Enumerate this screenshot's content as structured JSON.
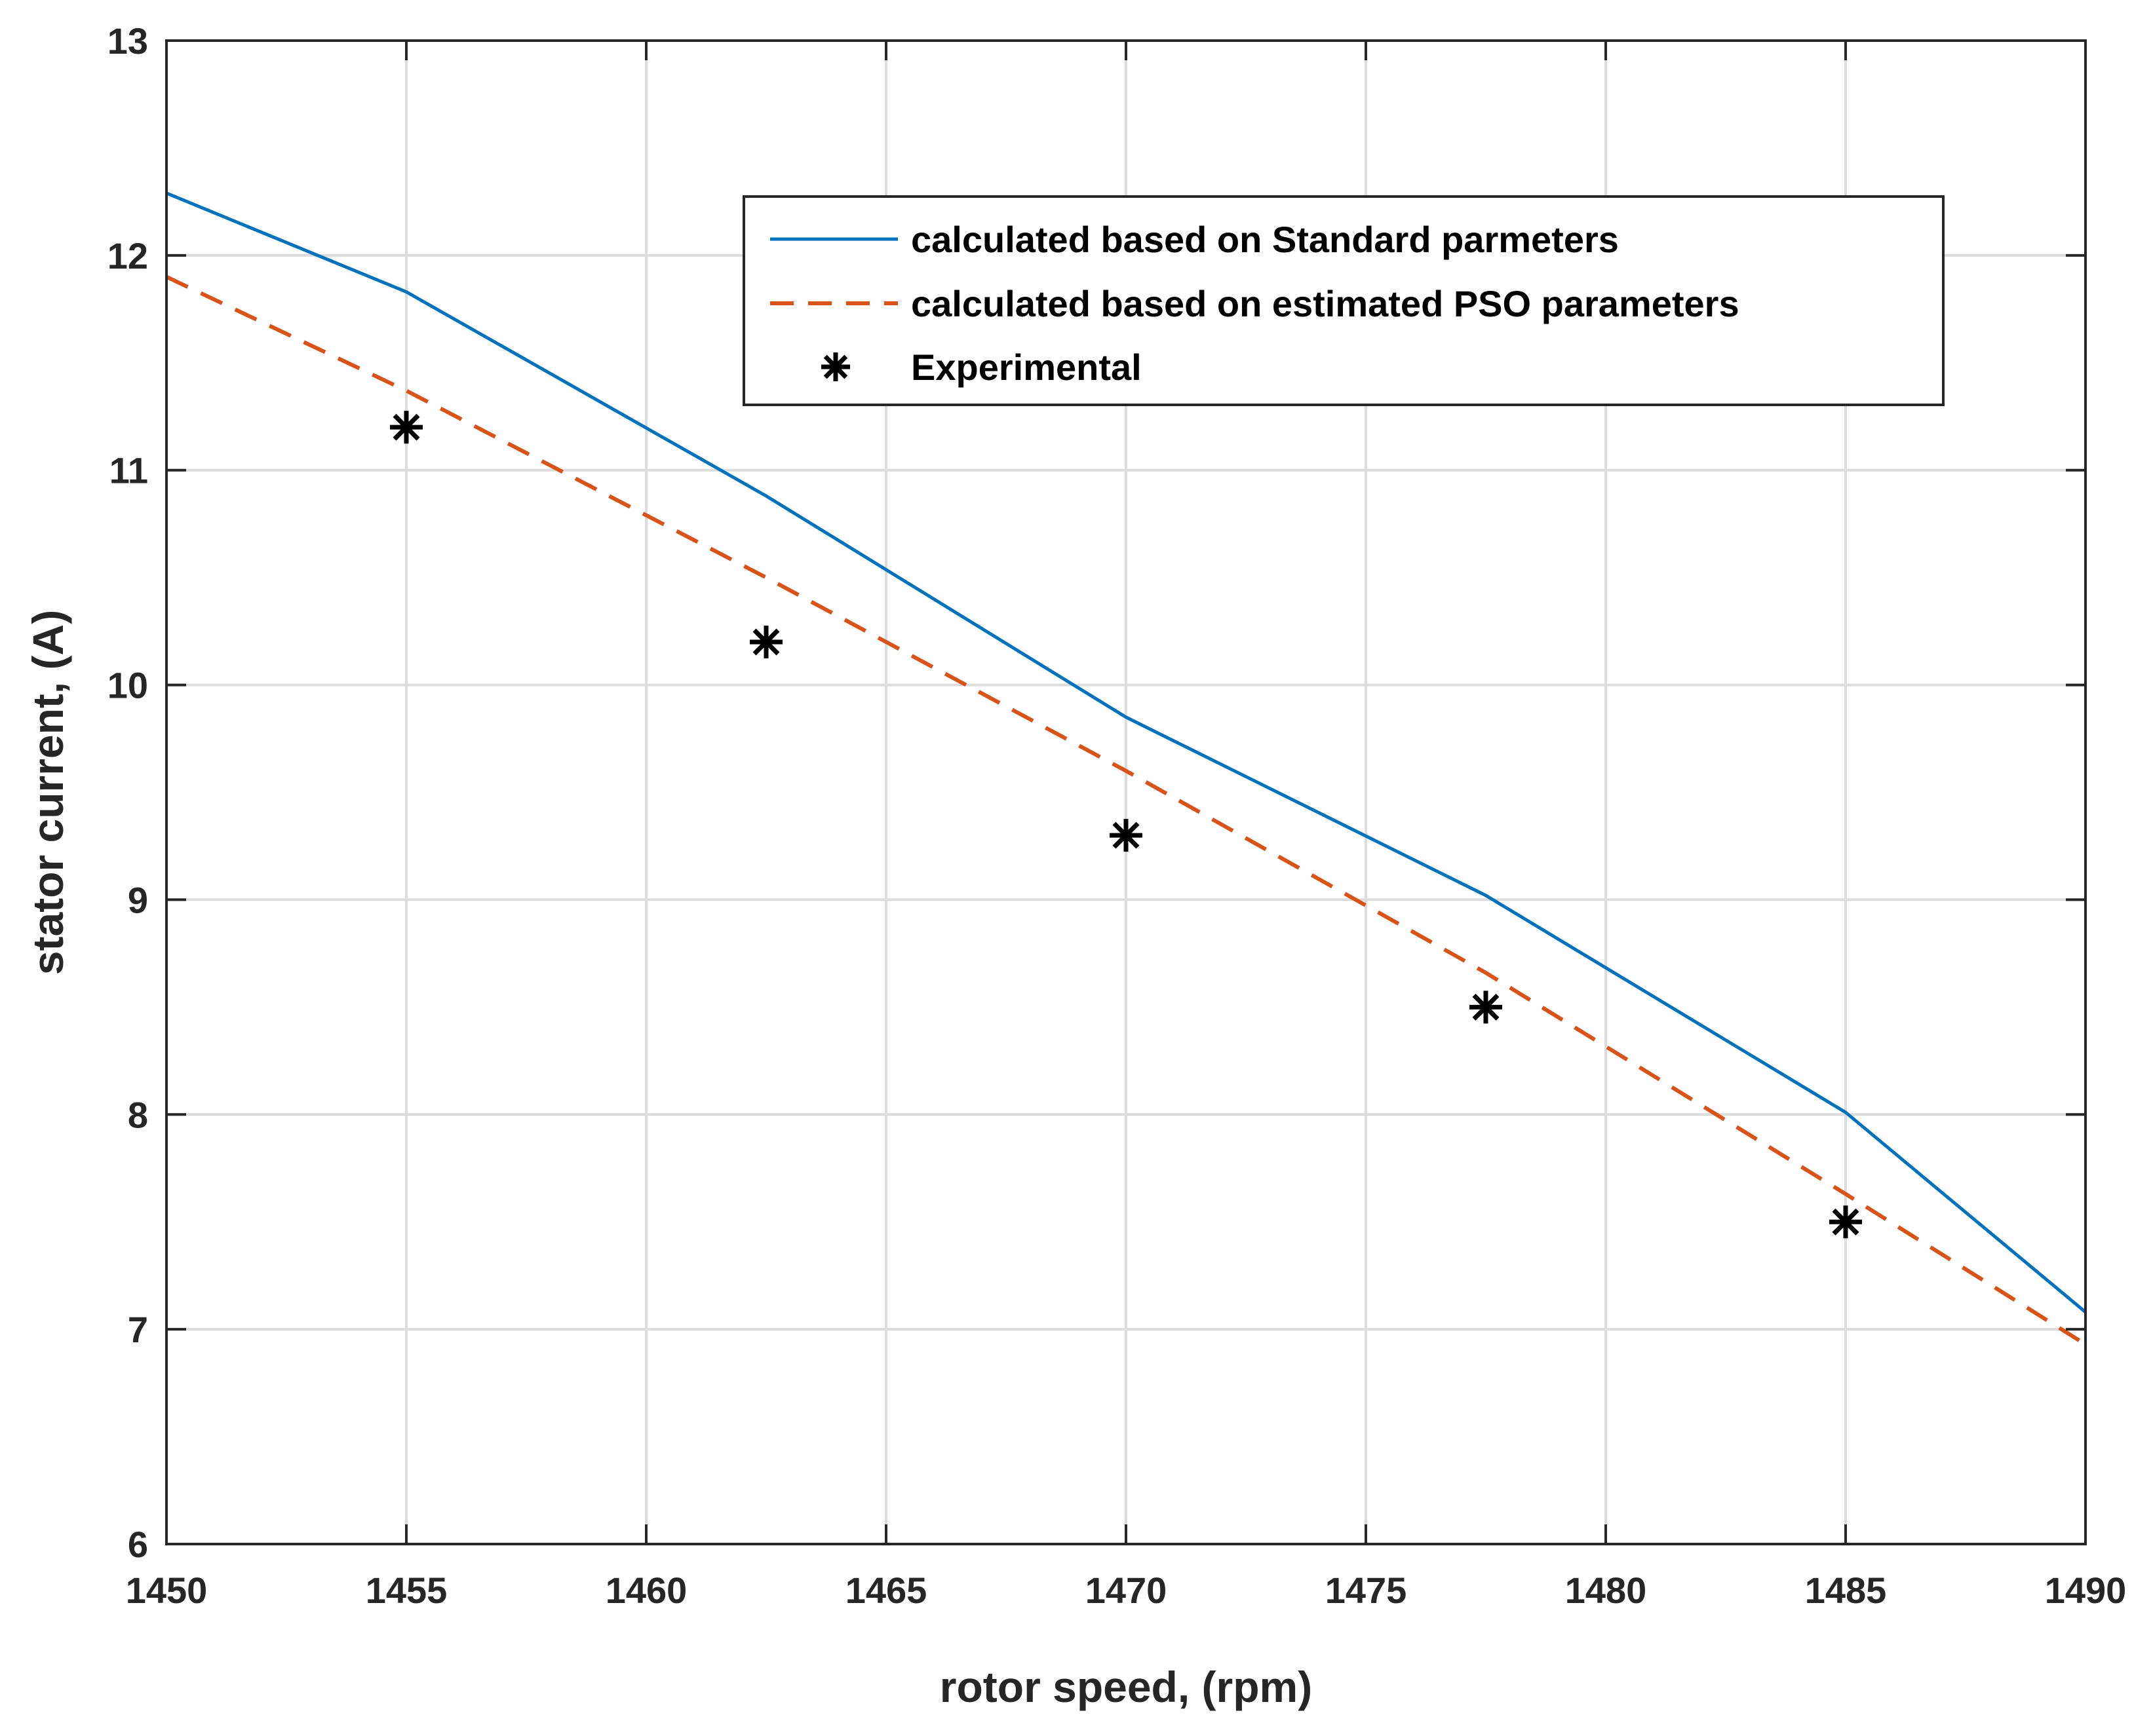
{
  "chart_data": {
    "type": "line",
    "title": "",
    "xlabel": "rotor speed, (rpm)",
    "ylabel": "stator current, (A)",
    "xlim": [
      1450,
      1490
    ],
    "ylim": [
      6,
      13
    ],
    "xticks": [
      1450,
      1455,
      1460,
      1465,
      1470,
      1475,
      1480,
      1485,
      1490
    ],
    "yticks": [
      6,
      7,
      8,
      9,
      10,
      11,
      12,
      13
    ],
    "grid": true,
    "legend_position": "top-right",
    "series": [
      {
        "name": "calculated based on Standard parmeters",
        "style": "solid",
        "color": "#0072BD",
        "x": [
          1450,
          1455,
          1462.5,
          1470,
          1477.5,
          1485,
          1490
        ],
        "y": [
          12.29,
          11.83,
          10.88,
          9.85,
          9.02,
          8.01,
          7.08
        ]
      },
      {
        "name": "calculated based on estimated PSO parameters",
        "style": "dashed",
        "color": "#D95319",
        "x": [
          1450,
          1455,
          1462.5,
          1470,
          1477.5,
          1485,
          1490
        ],
        "y": [
          11.9,
          11.37,
          10.5,
          9.6,
          8.66,
          7.63,
          6.93
        ]
      },
      {
        "name": "Experimental",
        "style": "marker-asterisk",
        "color": "#000000",
        "x": [
          1455,
          1462.5,
          1470,
          1477.5,
          1485
        ],
        "y": [
          11.2,
          10.2,
          9.3,
          8.5,
          7.5
        ]
      }
    ]
  }
}
